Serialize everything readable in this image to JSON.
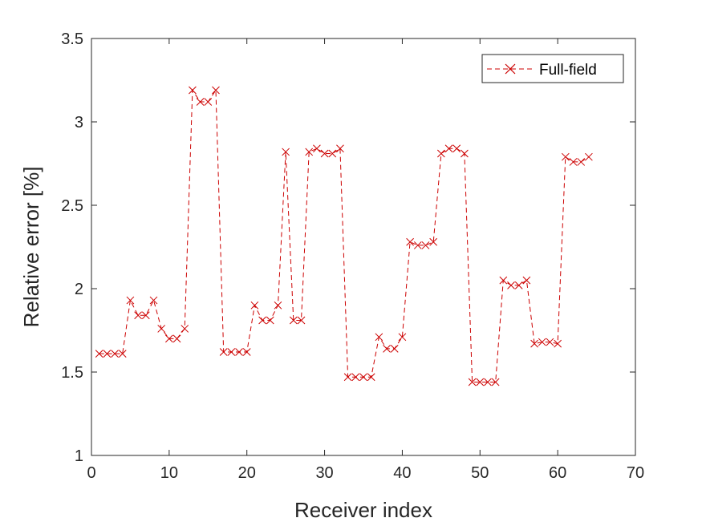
{
  "chart_data": {
    "type": "line",
    "title": "",
    "xlabel": "Receiver index",
    "ylabel": "Relative error [%]",
    "xlim": [
      0,
      70
    ],
    "ylim": [
      1,
      3.5
    ],
    "xticks": [
      "0",
      "10",
      "20",
      "30",
      "40",
      "50",
      "60",
      "70"
    ],
    "yticks": [
      "1",
      "1.5",
      "2",
      "2.5",
      "3",
      "3.5"
    ],
    "grid": false,
    "legend_position": "top-right",
    "series": [
      {
        "name": "Full-field",
        "color": "#cc0000",
        "line_style": "dashed",
        "marker": "x",
        "x": [
          1,
          2,
          3,
          4,
          5,
          6,
          7,
          8,
          9,
          10,
          11,
          12,
          13,
          14,
          15,
          16,
          17,
          18,
          19,
          20,
          21,
          22,
          23,
          24,
          25,
          26,
          27,
          28,
          29,
          30,
          31,
          32,
          33,
          34,
          35,
          36,
          37,
          38,
          39,
          40,
          41,
          42,
          43,
          44,
          45,
          46,
          47,
          48,
          49,
          50,
          51,
          52,
          53,
          54,
          55,
          56,
          57,
          58,
          59,
          60,
          61,
          62,
          63,
          64
        ],
        "y": [
          1.61,
          1.61,
          1.61,
          1.61,
          1.93,
          1.84,
          1.84,
          1.93,
          1.76,
          1.7,
          1.7,
          1.76,
          3.19,
          3.12,
          3.12,
          3.19,
          1.62,
          1.62,
          1.62,
          1.62,
          1.9,
          1.81,
          1.81,
          1.9,
          2.82,
          1.81,
          1.81,
          2.82,
          2.84,
          2.81,
          2.81,
          2.84,
          1.47,
          1.47,
          1.47,
          1.47,
          1.71,
          1.64,
          1.64,
          1.71,
          2.28,
          2.26,
          2.26,
          2.28,
          2.81,
          2.84,
          2.84,
          2.81,
          1.44,
          1.44,
          1.44,
          1.44,
          2.05,
          2.02,
          2.02,
          2.05,
          1.67,
          1.68,
          1.68,
          1.67,
          2.79,
          2.76,
          2.76,
          2.79
        ]
      }
    ]
  }
}
